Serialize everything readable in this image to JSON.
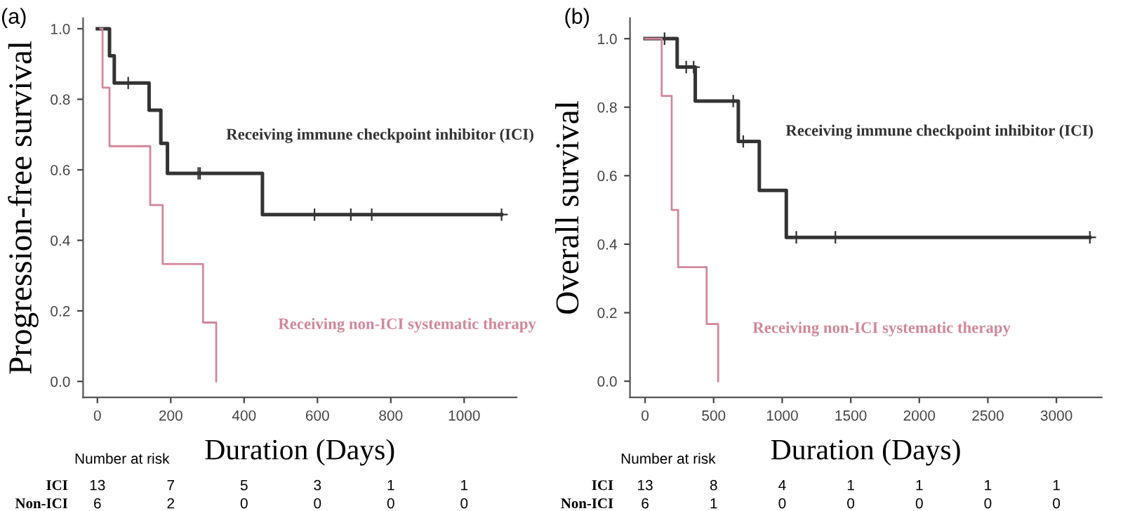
{
  "chart_data": [
    {
      "type": "step",
      "title": "(a)",
      "xlabel": "Duration (Days)",
      "ylabel": "Progression-free survival",
      "xlim": [
        -39,
        1143
      ],
      "ylim": [
        -0.045,
        1.03
      ],
      "xticks": [
        0,
        200,
        400,
        600,
        800,
        1000
      ],
      "yticks": [
        {
          "value": 0,
          "label": "0.0"
        },
        {
          "value": 0.2,
          "label": "0.2"
        },
        {
          "value": 0.4,
          "label": "0.4"
        },
        {
          "value": 0.6,
          "label": "0.6"
        },
        {
          "value": 0.8,
          "label": "0.8"
        },
        {
          "value": 1,
          "label": "1.0"
        }
      ],
      "grid": false,
      "legend": false,
      "series": [
        {
          "name": "Receiving immune checkpoint inhibitor (ICI)",
          "color": "#333333",
          "marker": "none",
          "x": [
            0,
            33,
            46,
            141,
            173,
            191,
            450,
            1102
          ],
          "values": [
            1.0,
            0.923,
            0.846,
            0.769,
            0.675,
            0.59,
            0.473,
            0.473
          ]
        },
        {
          "name": "Receiving non-ICI systematic therapy",
          "color": "#d4879a",
          "marker": "none",
          "x": [
            8,
            14,
            33,
            144,
            178,
            288,
            324
          ],
          "values": [
            1.0,
            0.833,
            0.667,
            0.5,
            0.333,
            0.167,
            0.0
          ]
        },
        {
          "type": "scatter",
          "color": "#333333",
          "marker": "cross",
          "x": [
            84,
            275,
            280,
            592,
            691,
            748,
            1102
          ],
          "values": [
            0.846,
            0.59,
            0.59,
            0.473,
            0.473,
            0.473,
            0.473
          ]
        }
      ],
      "annotations": [
        "Number at risk",
        "ICI",
        "13",
        "7",
        "5",
        "3",
        "1",
        "1",
        "Non-ICI",
        "6",
        "2",
        "0",
        "0",
        "0",
        "0"
      ]
    },
    {
      "type": "step",
      "title": "(b)",
      "xlabel": "Duration (Days)",
      "ylabel": "Overall survival",
      "xlim": [
        -110,
        3330
      ],
      "ylim": [
        -0.047,
        1.06
      ],
      "xticks": [
        0,
        500,
        1000,
        1500,
        2000,
        2500,
        3000
      ],
      "yticks": [
        {
          "value": 0,
          "label": "0.0"
        },
        {
          "value": 0.2,
          "label": "0.2"
        },
        {
          "value": 0.4,
          "label": "0.4"
        },
        {
          "value": 0.6,
          "label": "0.6"
        },
        {
          "value": 0.8,
          "label": "0.8"
        },
        {
          "value": 1,
          "label": "1.0"
        }
      ],
      "grid": false,
      "legend": false,
      "series": [
        {
          "name": "Receiving immune checkpoint inhibitor (ICI)",
          "color": "#333333",
          "marker": "none",
          "x": [
            0,
            234,
            366,
            680,
            833,
            1030,
            3244
          ],
          "values": [
            1.0,
            0.917,
            0.818,
            0.7,
            0.557,
            0.42,
            0.42
          ]
        },
        {
          "name": "Receiving non-ICI systematic therapy",
          "color": "#d4879a",
          "marker": "none",
          "x": [
            0,
            121,
            194,
            241,
            449,
            533
          ],
          "values": [
            1.0,
            0.833,
            0.5,
            0.333,
            0.167,
            0.0
          ]
        },
        {
          "type": "scatter",
          "color": "#333333",
          "marker": "cross",
          "x": [
            142,
            300,
            354,
            643,
            716,
            1103,
            1388,
            3244
          ],
          "values": [
            1.0,
            0.917,
            0.917,
            0.818,
            0.7,
            0.42,
            0.42,
            0.42
          ]
        }
      ],
      "annotations": [
        "Number at risk",
        "ICI",
        "13",
        "8",
        "4",
        "1",
        "1",
        "1",
        "1",
        "Non-ICI",
        "6",
        "1",
        "0",
        "0",
        "0",
        "0",
        "0"
      ]
    }
  ]
}
